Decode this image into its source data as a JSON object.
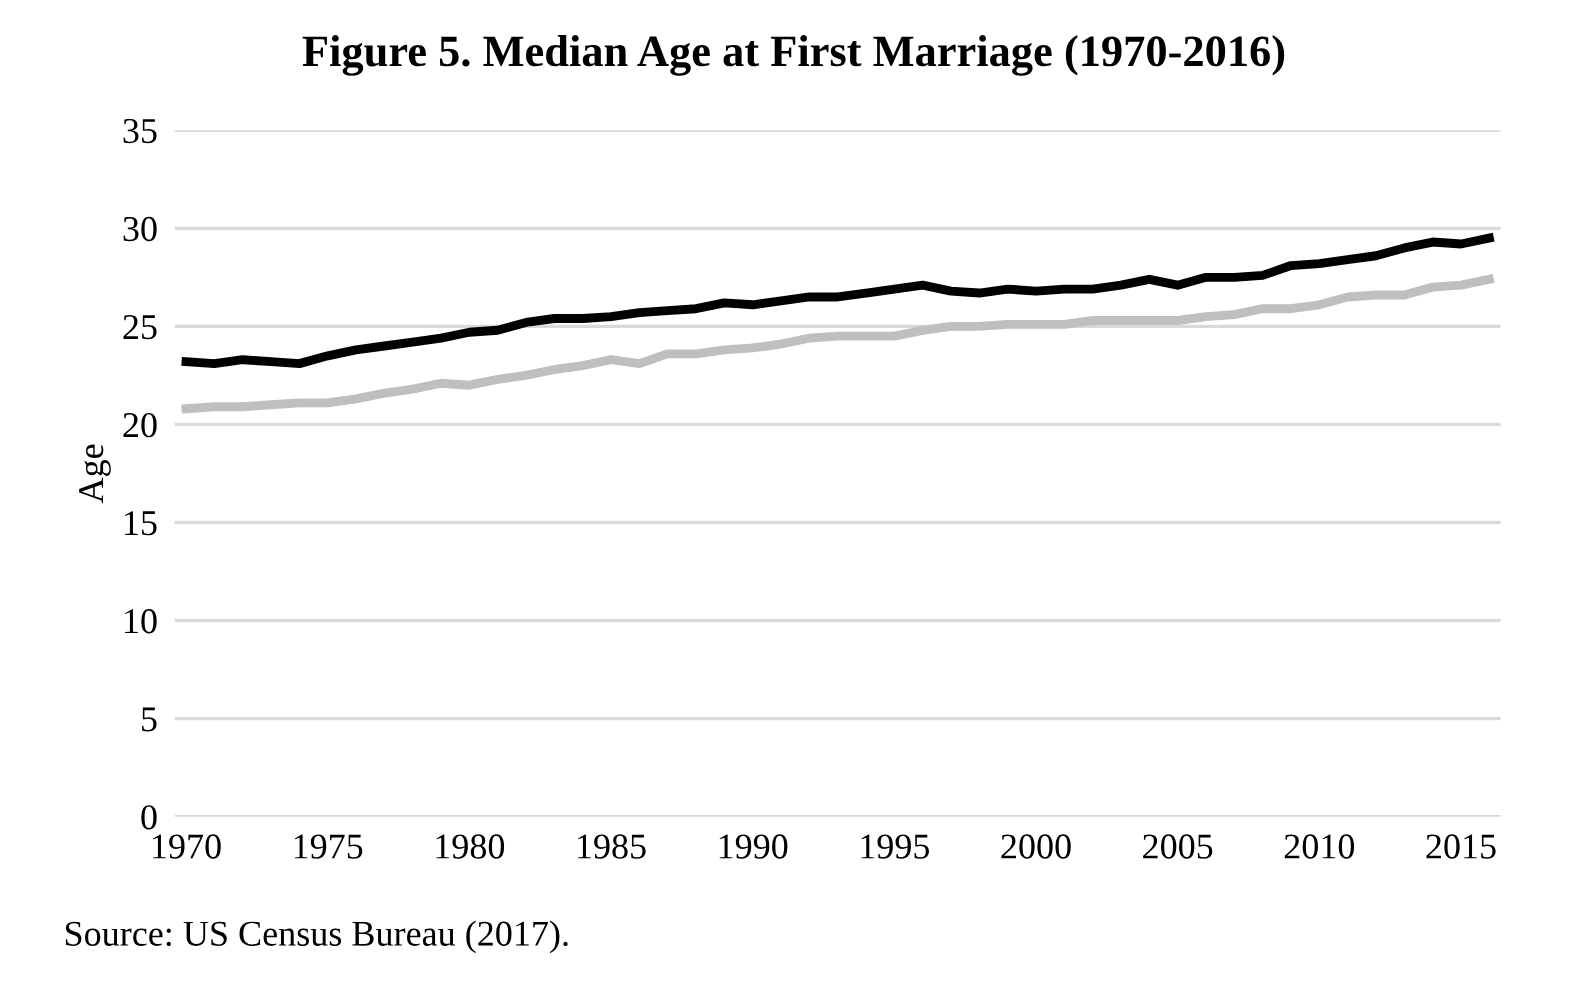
{
  "chart_data": {
    "type": "line",
    "title": "Figure 5. Median Age at First Marriage (1970-2016)",
    "ylabel": "Age",
    "x": [
      1970,
      1971,
      1972,
      1973,
      1974,
      1975,
      1976,
      1977,
      1978,
      1979,
      1980,
      1981,
      1982,
      1983,
      1984,
      1985,
      1986,
      1987,
      1988,
      1989,
      1990,
      1991,
      1992,
      1993,
      1994,
      1995,
      1996,
      1997,
      1998,
      1999,
      2000,
      2001,
      2002,
      2003,
      2004,
      2005,
      2006,
      2007,
      2008,
      2009,
      2010,
      2011,
      2012,
      2013,
      2014,
      2015,
      2016
    ],
    "series": [
      {
        "color": "#000000",
        "values": [
          23.2,
          23.1,
          23.3,
          23.2,
          23.1,
          23.5,
          23.8,
          24.0,
          24.2,
          24.4,
          24.7,
          24.8,
          25.2,
          25.4,
          25.4,
          25.5,
          25.7,
          25.8,
          25.9,
          26.2,
          26.1,
          26.3,
          26.5,
          26.5,
          26.7,
          26.9,
          27.1,
          26.8,
          26.7,
          26.9,
          26.8,
          26.9,
          26.9,
          27.1,
          27.4,
          27.1,
          27.5,
          27.5,
          27.6,
          28.1,
          28.2,
          28.4,
          28.6,
          29.0,
          29.3,
          29.2,
          29.5
        ]
      },
      {
        "color": "#bfbfbf",
        "values": [
          20.8,
          20.9,
          20.9,
          21.0,
          21.1,
          21.1,
          21.3,
          21.6,
          21.8,
          22.1,
          22.0,
          22.3,
          22.5,
          22.8,
          23.0,
          23.3,
          23.1,
          23.6,
          23.6,
          23.8,
          23.9,
          24.1,
          24.4,
          24.5,
          24.5,
          24.5,
          24.8,
          25.0,
          25.0,
          25.1,
          25.1,
          25.1,
          25.3,
          25.3,
          25.3,
          25.3,
          25.5,
          25.6,
          25.9,
          25.9,
          26.1,
          26.5,
          26.6,
          26.6,
          27.0,
          27.1,
          27.4
        ]
      }
    ],
    "xlim": [
      1969.6,
      2016.4
    ],
    "xticks": [
      1970,
      1975,
      1980,
      1985,
      1990,
      1995,
      2000,
      2005,
      2010,
      2015
    ],
    "ylim": [
      0,
      35
    ],
    "yticks": [
      0,
      5,
      10,
      15,
      20,
      25,
      30,
      35
    ],
    "grid": "y",
    "marker": "none",
    "line_style": "solid",
    "annotations": [
      "Source: US Census Bureau (2017)."
    ]
  }
}
